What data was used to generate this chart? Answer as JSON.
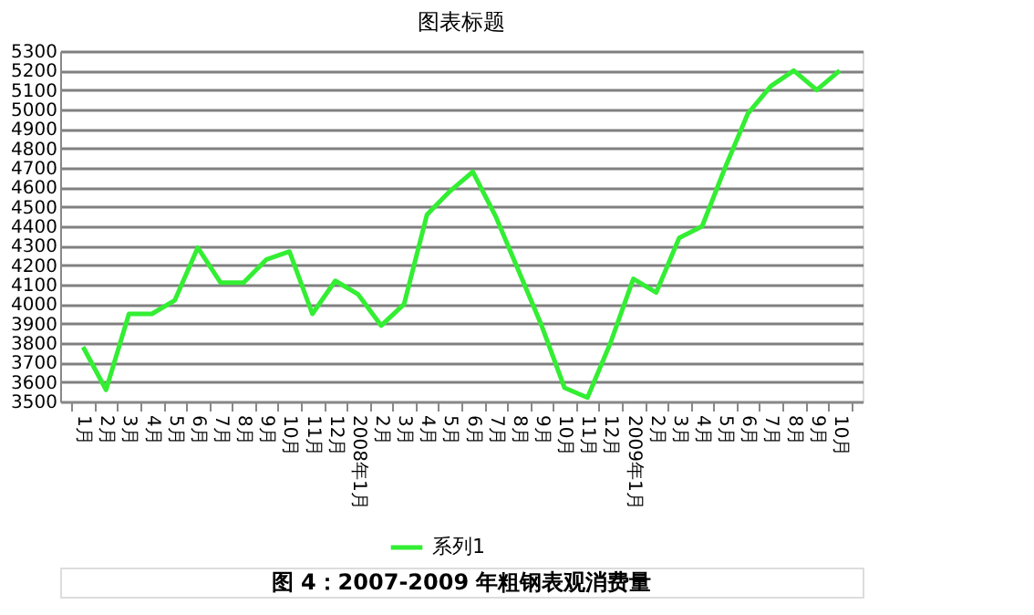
{
  "chart_data": {
    "type": "line",
    "title": "图表标题",
    "categories": [
      "1月",
      "2月",
      "3月",
      "4月",
      "5月",
      "6月",
      "7月",
      "8月",
      "9月",
      "10月",
      "11月",
      "12月",
      "2008年1月",
      "2月",
      "3月",
      "4月",
      "5月",
      "6月",
      "7月",
      "8月",
      "9月",
      "10月",
      "11月",
      "12月",
      "2009年1月",
      "2月",
      "3月",
      "4月",
      "5月",
      "6月",
      "7月",
      "8月",
      "9月",
      "10月"
    ],
    "series": [
      {
        "name": "系列1",
        "color": "#33ee33",
        "values": [
          3780,
          3560,
          3950,
          3950,
          4020,
          4290,
          4110,
          4110,
          4230,
          4270,
          3950,
          4120,
          4050,
          3890,
          4000,
          4460,
          4580,
          4680,
          4450,
          4170,
          3890,
          3570,
          3520,
          3800,
          4130,
          4060,
          4340,
          4400,
          4700,
          4980,
          5120,
          5200,
          5100,
          5200
        ]
      }
    ],
    "ylim": [
      3500,
      5300
    ],
    "yticks": [
      3500,
      3600,
      3700,
      3800,
      3900,
      4000,
      4100,
      4200,
      4300,
      4400,
      4500,
      4600,
      4700,
      4800,
      4900,
      5000,
      5100,
      5200,
      5300
    ],
    "grid": "y",
    "legend": "bottom",
    "marker": "none",
    "line_style": "solid",
    "annotations": [
      "图 4：2007-2009 年粗钢表观消费量"
    ]
  }
}
